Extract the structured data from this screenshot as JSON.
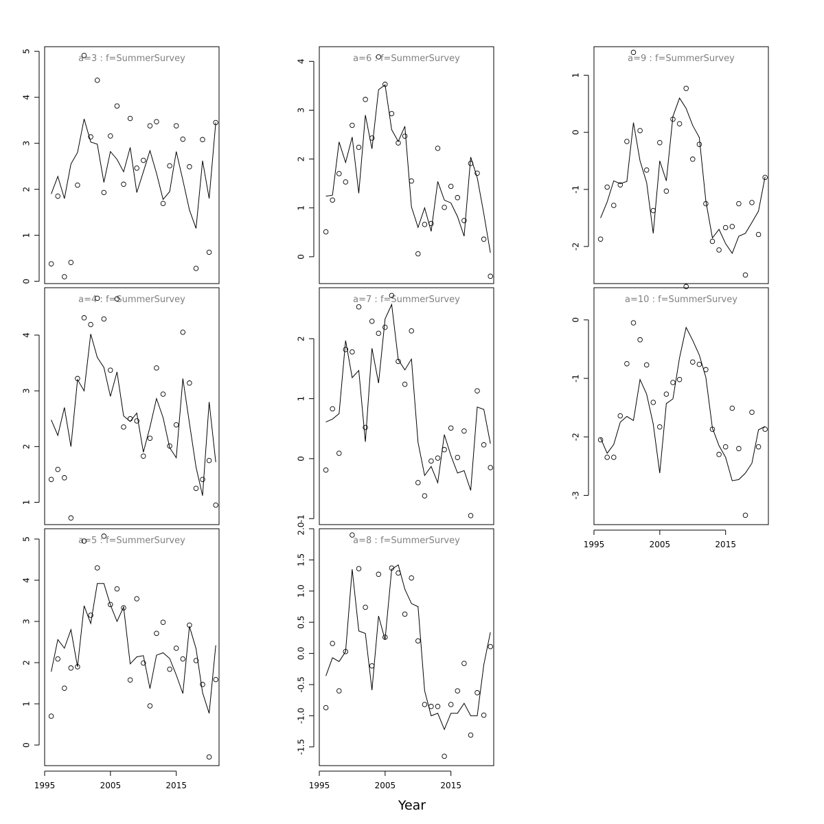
{
  "xlabel": "Year",
  "chart_data": [
    {
      "type": "line",
      "title": "a=3  :  f=SummerSurvey",
      "xlim": [
        1995,
        2021.5
      ],
      "ylim": [
        -0.05,
        5.1
      ],
      "yticks": [
        0,
        1,
        2,
        3,
        4,
        5
      ],
      "xticks": [],
      "years": [
        1996,
        1997,
        1998,
        1999,
        2000,
        2001,
        2002,
        2003,
        2004,
        2005,
        2006,
        2007,
        2008,
        2009,
        2010,
        2011,
        2012,
        2013,
        2014,
        2015,
        2016,
        2017,
        2018,
        2019,
        2020,
        2021
      ],
      "series": [
        {
          "kind": "fitted-line",
          "values": [
            1.9,
            2.28,
            1.8,
            2.55,
            2.8,
            3.53,
            3.03,
            2.98,
            2.15,
            2.82,
            2.65,
            2.38,
            2.91,
            1.93,
            2.38,
            2.84,
            2.35,
            1.78,
            1.95,
            2.82,
            2.2,
            1.55,
            1.15,
            2.62,
            1.8,
            3.45
          ]
        },
        {
          "kind": "observed-points",
          "values": [
            0.38,
            1.85,
            0.1,
            0.41,
            2.09,
            4.91,
            3.14,
            4.37,
            1.93,
            3.16,
            3.81,
            2.11,
            3.54,
            2.46,
            2.63,
            3.38,
            3.47,
            1.69,
            2.51,
            3.38,
            3.09,
            2.49,
            0.28,
            3.08,
            0.63,
            3.45
          ]
        }
      ]
    },
    {
      "type": "line",
      "title": "a=4  :  f=SummerSurvey",
      "xlim": [
        1995,
        2021.5
      ],
      "ylim": [
        0.6,
        4.85
      ],
      "yticks": [
        1,
        2,
        3,
        4
      ],
      "xticks": [],
      "years": [
        1996,
        1997,
        1998,
        1999,
        2000,
        2001,
        2002,
        2003,
        2004,
        2005,
        2006,
        2007,
        2008,
        2009,
        2010,
        2011,
        2012,
        2013,
        2014,
        2015,
        2016,
        2017,
        2018,
        2019,
        2020,
        2021
      ],
      "series": [
        {
          "kind": "fitted-line",
          "values": [
            2.48,
            2.2,
            2.7,
            2.0,
            3.2,
            3.0,
            4.02,
            3.6,
            3.42,
            2.9,
            3.34,
            2.55,
            2.45,
            2.6,
            1.9,
            2.35,
            2.86,
            2.52,
            1.98,
            1.8,
            3.22,
            2.42,
            1.63,
            1.12,
            2.8,
            1.72
          ]
        },
        {
          "kind": "observed-points",
          "values": [
            1.41,
            1.59,
            1.44,
            0.72,
            3.22,
            4.31,
            4.19,
            4.66,
            4.29,
            3.37,
            4.65,
            2.35,
            2.5,
            2.46,
            1.83,
            2.15,
            3.41,
            2.94,
            2.01,
            2.39,
            4.05,
            3.14,
            1.25,
            1.41,
            1.75,
            0.95
          ]
        }
      ]
    },
    {
      "type": "line",
      "title": "a=5  :  f=SummerSurvey",
      "xlim": [
        1995,
        2021.5
      ],
      "ylim": [
        -0.5,
        5.25
      ],
      "yticks": [
        0,
        1,
        2,
        3,
        4,
        5
      ],
      "xticks": [
        1995,
        2005,
        2015
      ],
      "years": [
        1996,
        1997,
        1998,
        1999,
        2000,
        2001,
        2002,
        2003,
        2004,
        2005,
        2006,
        2007,
        2008,
        2009,
        2010,
        2011,
        2012,
        2013,
        2014,
        2015,
        2016,
        2017,
        2018,
        2019,
        2020,
        2021
      ],
      "series": [
        {
          "kind": "fitted-line",
          "values": [
            1.78,
            2.56,
            2.35,
            2.8,
            1.9,
            3.38,
            2.95,
            3.92,
            3.92,
            3.4,
            3.0,
            3.35,
            1.97,
            2.14,
            2.17,
            1.37,
            2.18,
            2.24,
            2.1,
            1.7,
            1.25,
            2.88,
            2.34,
            1.27,
            0.77,
            2.42
          ]
        },
        {
          "kind": "observed-points",
          "values": [
            0.7,
            2.09,
            1.38,
            1.87,
            1.9,
            4.95,
            3.15,
            4.3,
            5.07,
            3.41,
            3.79,
            3.33,
            1.58,
            3.55,
            1.99,
            0.95,
            2.71,
            2.98,
            1.84,
            2.35,
            2.09,
            2.91,
            2.05,
            1.47,
            -0.29,
            1.59
          ]
        }
      ]
    },
    {
      "type": "line",
      "title": "a=6  :  f=SummerSurvey",
      "xlim": [
        1995,
        2021.5
      ],
      "ylim": [
        -0.55,
        4.3
      ],
      "yticks": [
        0,
        1,
        2,
        3,
        4
      ],
      "xticks": [],
      "years": [
        1996,
        1997,
        1998,
        1999,
        2000,
        2001,
        2002,
        2003,
        2004,
        2005,
        2006,
        2007,
        2008,
        2009,
        2010,
        2011,
        2012,
        2013,
        2014,
        2015,
        2016,
        2017,
        2018,
        2019,
        2020,
        2021
      ],
      "series": [
        {
          "kind": "fitted-line",
          "values": [
            1.24,
            1.26,
            2.35,
            1.93,
            2.45,
            1.3,
            2.9,
            2.21,
            3.42,
            3.52,
            2.6,
            2.36,
            2.67,
            1.02,
            0.6,
            1.0,
            0.52,
            1.54,
            1.16,
            1.1,
            0.82,
            0.42,
            2.04,
            1.62,
            0.88,
            0.08
          ]
        },
        {
          "kind": "observed-points",
          "values": [
            0.51,
            1.16,
            1.7,
            1.53,
            2.69,
            2.24,
            3.22,
            2.43,
            4.09,
            3.53,
            2.93,
            2.33,
            2.47,
            1.55,
            0.06,
            0.66,
            0.68,
            2.22,
            1.01,
            1.44,
            1.21,
            0.74,
            1.91,
            1.71,
            0.36,
            -0.4
          ]
        }
      ]
    },
    {
      "type": "line",
      "title": "a=7  :  f=SummerSurvey",
      "xlim": [
        1995,
        2021.5
      ],
      "ylim": [
        -1.1,
        2.85
      ],
      "yticks": [
        -1,
        0,
        1,
        2
      ],
      "xticks": [],
      "years": [
        1996,
        1997,
        1998,
        1999,
        2000,
        2001,
        2002,
        2003,
        2004,
        2005,
        2006,
        2007,
        2008,
        2009,
        2010,
        2011,
        2012,
        2013,
        2014,
        2015,
        2016,
        2017,
        2018,
        2019,
        2020,
        2021
      ],
      "series": [
        {
          "kind": "fitted-line",
          "values": [
            0.61,
            0.66,
            0.75,
            1.97,
            1.35,
            1.47,
            0.28,
            1.84,
            1.26,
            2.33,
            2.57,
            1.65,
            1.48,
            1.66,
            0.27,
            -0.28,
            -0.13,
            -0.4,
            0.4,
            0.05,
            -0.24,
            -0.2,
            -0.53,
            0.86,
            0.82,
            0.25
          ]
        },
        {
          "kind": "observed-points",
          "values": [
            -0.19,
            0.83,
            0.09,
            1.82,
            1.78,
            2.53,
            0.52,
            2.29,
            2.09,
            2.19,
            2.72,
            1.62,
            1.24,
            2.13,
            -0.4,
            -0.62,
            -0.04,
            0.01,
            0.15,
            0.51,
            0.02,
            0.46,
            -0.95,
            1.13,
            0.23,
            -0.15
          ]
        }
      ]
    },
    {
      "type": "line",
      "title": "a=8  :  f=SummerSurvey",
      "xlim": [
        1995,
        2021.5
      ],
      "ylim": [
        -1.8,
        2.0
      ],
      "yticks": [
        -1.5,
        -1.0,
        -0.5,
        0.0,
        0.5,
        1.0,
        1.5,
        2.0
      ],
      "yticklabels": [
        "-1.5",
        "-1.0",
        "-0.5",
        "0.0",
        "0.5",
        "1.0",
        "1.5",
        "2.0"
      ],
      "xticks": [
        1995,
        2005,
        2015
      ],
      "years": [
        1996,
        1997,
        1998,
        1999,
        2000,
        2001,
        2002,
        2003,
        2004,
        2005,
        2006,
        2007,
        2008,
        2009,
        2010,
        2011,
        2012,
        2013,
        2014,
        2015,
        2016,
        2017,
        2018,
        2019,
        2020,
        2021
      ],
      "series": [
        {
          "kind": "fitted-line",
          "values": [
            -0.36,
            -0.07,
            -0.13,
            0.03,
            1.35,
            0.36,
            0.32,
            -0.59,
            0.6,
            0.22,
            1.35,
            1.42,
            1.03,
            0.8,
            0.75,
            -0.6,
            -1.0,
            -0.96,
            -1.22,
            -0.96,
            -0.96,
            -0.8,
            -1.0,
            -1.0,
            -0.18,
            0.34
          ]
        },
        {
          "kind": "observed-points",
          "values": [
            -0.87,
            0.16,
            -0.6,
            0.03,
            1.9,
            1.36,
            0.74,
            -0.2,
            1.27,
            0.26,
            1.37,
            1.29,
            0.63,
            1.21,
            0.2,
            -0.82,
            -0.85,
            -0.85,
            -1.65,
            -0.82,
            -0.6,
            -0.16,
            -1.31,
            -0.63,
            -0.99,
            0.11
          ]
        }
      ]
    },
    {
      "type": "line",
      "title": "a=9  :  f=SummerSurvey",
      "xlim": [
        1995,
        2021.5
      ],
      "ylim": [
        -2.65,
        1.5
      ],
      "yticks": [
        -2,
        -1,
        0,
        1
      ],
      "xticks": [],
      "years": [
        1996,
        1997,
        1998,
        1999,
        2000,
        2001,
        2002,
        2003,
        2004,
        2005,
        2006,
        2007,
        2008,
        2009,
        2010,
        2011,
        2012,
        2013,
        2014,
        2015,
        2016,
        2017,
        2018,
        2019,
        2020,
        2021
      ],
      "series": [
        {
          "kind": "fitted-line",
          "values": [
            -1.5,
            -1.22,
            -0.85,
            -0.9,
            -0.86,
            0.17,
            -0.5,
            -0.88,
            -1.77,
            -0.5,
            -0.85,
            0.28,
            0.6,
            0.42,
            0.12,
            -0.09,
            -1.2,
            -1.85,
            -1.7,
            -1.95,
            -2.12,
            -1.82,
            -1.77,
            -1.58,
            -1.38,
            -0.78
          ]
        },
        {
          "kind": "observed-points",
          "values": [
            -1.87,
            -0.96,
            -1.28,
            -0.92,
            -0.16,
            1.4,
            0.03,
            -0.66,
            -1.37,
            -0.18,
            -1.03,
            0.23,
            0.15,
            0.77,
            -0.47,
            -0.21,
            -1.25,
            -1.91,
            -2.06,
            -1.67,
            -1.65,
            -1.25,
            -2.5,
            -1.23,
            -1.79,
            -0.79
          ]
        }
      ]
    },
    {
      "type": "line",
      "title": "a=10  :  f=SummerSurvey",
      "xlim": [
        1995,
        2021.5
      ],
      "ylim": [
        -3.5,
        0.55
      ],
      "yticks": [
        -3,
        -2,
        -1,
        0
      ],
      "xticks": [
        1995,
        2005,
        2015
      ],
      "years": [
        1996,
        1997,
        1998,
        1999,
        2000,
        2001,
        2002,
        2003,
        2004,
        2005,
        2006,
        2007,
        2008,
        2009,
        2010,
        2011,
        2012,
        2013,
        2014,
        2015,
        2016,
        2017,
        2018,
        2019,
        2020,
        2021
      ],
      "series": [
        {
          "kind": "fitted-line",
          "values": [
            -2.02,
            -2.28,
            -2.13,
            -1.75,
            -1.65,
            -1.72,
            -1.02,
            -1.27,
            -1.78,
            -2.62,
            -1.43,
            -1.35,
            -0.65,
            -0.13,
            -0.35,
            -0.6,
            -0.98,
            -1.85,
            -2.15,
            -2.35,
            -2.75,
            -2.73,
            -2.62,
            -2.45,
            -1.88,
            -1.82
          ]
        },
        {
          "kind": "observed-points",
          "values": [
            -2.05,
            -2.35,
            -2.35,
            -1.64,
            -0.75,
            -0.05,
            -0.34,
            -0.77,
            -1.41,
            -1.83,
            -1.27,
            -1.07,
            -1.02,
            0.57,
            -0.72,
            -0.76,
            -0.85,
            -1.87,
            -2.3,
            -2.17,
            -1.51,
            -2.2,
            -3.34,
            -1.58,
            -2.17,
            -1.87
          ]
        }
      ]
    }
  ]
}
